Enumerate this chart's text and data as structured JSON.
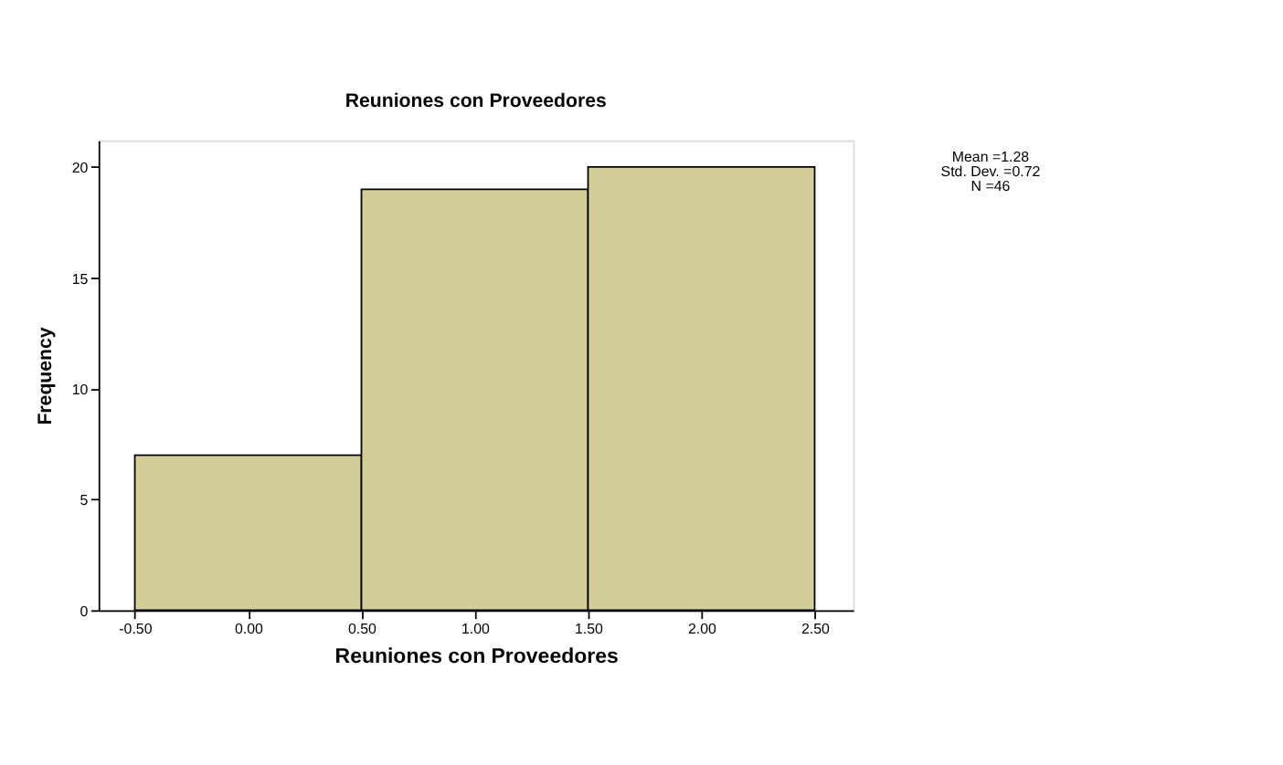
{
  "chart_data": {
    "type": "histogram",
    "title": "Reuniones con Proveedores",
    "xlabel": "Reuniones con Proveedores",
    "ylabel": "Frequency",
    "bins": [
      -0.5,
      0.5,
      1.5,
      2.5
    ],
    "values": [
      7,
      19,
      20
    ],
    "color": "#d3cd97",
    "xlim": [
      -0.66,
      2.67
    ],
    "xticks": [
      {
        "value": -0.5,
        "label": "-0.50"
      },
      {
        "value": 0,
        "label": "0.00"
      },
      {
        "value": 0.5,
        "label": "0.50"
      },
      {
        "value": 1,
        "label": "1.00"
      },
      {
        "value": 1.5,
        "label": "1.50"
      },
      {
        "value": 2,
        "label": "2.00"
      },
      {
        "value": 2.5,
        "label": "2.50"
      }
    ],
    "ylim": [
      0,
      21.2
    ],
    "yticks": [
      0,
      5,
      10,
      15,
      20
    ],
    "grid": false,
    "annotations": [
      "Mean =1.28",
      "Std. Dev. =0.72",
      "N =46"
    ]
  }
}
